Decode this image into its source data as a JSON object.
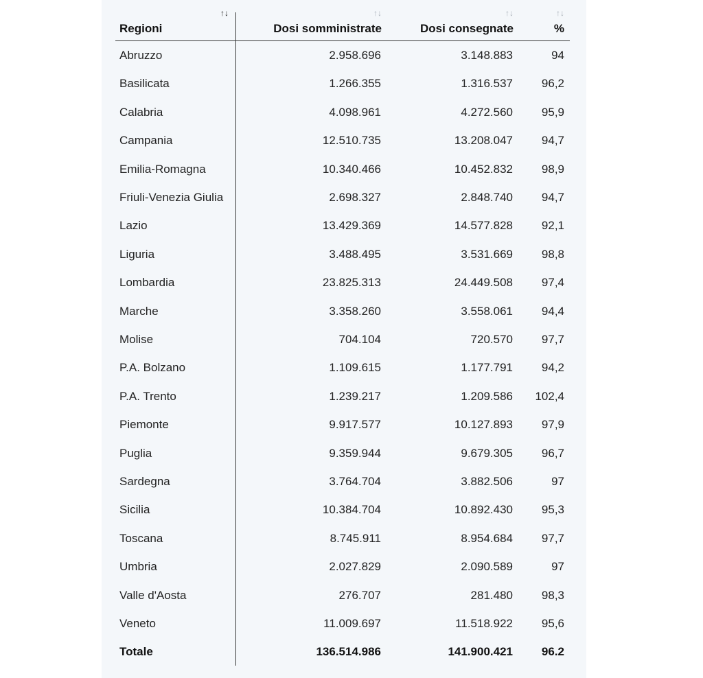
{
  "table": {
    "headers": {
      "region": "Regioni",
      "administered": "Dosi somministrate",
      "delivered": "Dosi consegnate",
      "percent": "%"
    },
    "sort_icon": "sort-arrows-icon",
    "active_sort_column": "region",
    "rows": [
      {
        "region": "Abruzzo",
        "administered": "2.958.696",
        "delivered": "3.148.883",
        "percent": "94"
      },
      {
        "region": "Basilicata",
        "administered": "1.266.355",
        "delivered": "1.316.537",
        "percent": "96,2"
      },
      {
        "region": "Calabria",
        "administered": "4.098.961",
        "delivered": "4.272.560",
        "percent": "95,9"
      },
      {
        "region": "Campania",
        "administered": "12.510.735",
        "delivered": "13.208.047",
        "percent": "94,7"
      },
      {
        "region": "Emilia-Romagna",
        "administered": "10.340.466",
        "delivered": "10.452.832",
        "percent": "98,9"
      },
      {
        "region": "Friuli-Venezia Giulia",
        "administered": "2.698.327",
        "delivered": "2.848.740",
        "percent": "94,7"
      },
      {
        "region": "Lazio",
        "administered": "13.429.369",
        "delivered": "14.577.828",
        "percent": "92,1"
      },
      {
        "region": "Liguria",
        "administered": "3.488.495",
        "delivered": "3.531.669",
        "percent": "98,8"
      },
      {
        "region": "Lombardia",
        "administered": "23.825.313",
        "delivered": "24.449.508",
        "percent": "97,4"
      },
      {
        "region": "Marche",
        "administered": "3.358.260",
        "delivered": "3.558.061",
        "percent": "94,4"
      },
      {
        "region": "Molise",
        "administered": "704.104",
        "delivered": "720.570",
        "percent": "97,7"
      },
      {
        "region": "P.A. Bolzano",
        "administered": "1.109.615",
        "delivered": "1.177.791",
        "percent": "94,2"
      },
      {
        "region": "P.A. Trento",
        "administered": "1.239.217",
        "delivered": "1.209.586",
        "percent": "102,4"
      },
      {
        "region": "Piemonte",
        "administered": "9.917.577",
        "delivered": "10.127.893",
        "percent": "97,9"
      },
      {
        "region": "Puglia",
        "administered": "9.359.944",
        "delivered": "9.679.305",
        "percent": "96,7"
      },
      {
        "region": "Sardegna",
        "administered": "3.764.704",
        "delivered": "3.882.506",
        "percent": "97"
      },
      {
        "region": "Sicilia",
        "administered": "10.384.704",
        "delivered": "10.892.430",
        "percent": "95,3"
      },
      {
        "region": "Toscana",
        "administered": "8.745.911",
        "delivered": "8.954.684",
        "percent": "97,7"
      },
      {
        "region": "Umbria",
        "administered": "2.027.829",
        "delivered": "2.090.589",
        "percent": "97"
      },
      {
        "region": "Valle d'Aosta",
        "administered": "276.707",
        "delivered": "281.480",
        "percent": "98,3"
      },
      {
        "region": "Veneto",
        "administered": "11.009.697",
        "delivered": "11.518.922",
        "percent": "95,6"
      }
    ],
    "total": {
      "region": "Totale",
      "administered": "136.514.986",
      "delivered": "141.900.421",
      "percent": "96.2"
    }
  }
}
